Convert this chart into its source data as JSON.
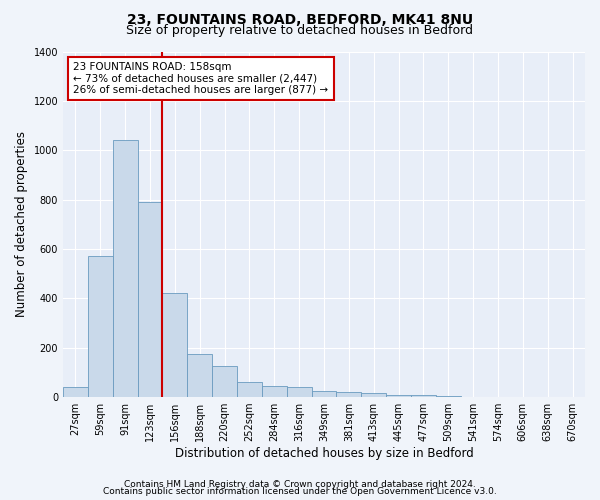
{
  "title": "23, FOUNTAINS ROAD, BEDFORD, MK41 8NU",
  "subtitle": "Size of property relative to detached houses in Bedford",
  "xlabel": "Distribution of detached houses by size in Bedford",
  "ylabel": "Number of detached properties",
  "categories": [
    "27sqm",
    "59sqm",
    "91sqm",
    "123sqm",
    "156sqm",
    "188sqm",
    "220sqm",
    "252sqm",
    "284sqm",
    "316sqm",
    "349sqm",
    "381sqm",
    "413sqm",
    "445sqm",
    "477sqm",
    "509sqm",
    "541sqm",
    "574sqm",
    "606sqm",
    "638sqm",
    "670sqm"
  ],
  "values": [
    40,
    570,
    1040,
    790,
    420,
    175,
    125,
    60,
    45,
    40,
    25,
    20,
    15,
    10,
    8,
    3,
    2,
    0,
    0,
    0,
    0
  ],
  "bar_color": "#c9d9ea",
  "bar_edge_color": "#6a9bbf",
  "vline_color": "#cc0000",
  "vline_index": 4,
  "annotation_text": "23 FOUNTAINS ROAD: 158sqm\n← 73% of detached houses are smaller (2,447)\n26% of semi-detached houses are larger (877) →",
  "annotation_box_facecolor": "#ffffff",
  "annotation_box_edgecolor": "#cc0000",
  "ylim": [
    0,
    1400
  ],
  "yticks": [
    0,
    200,
    400,
    600,
    800,
    1000,
    1200,
    1400
  ],
  "footer1": "Contains HM Land Registry data © Crown copyright and database right 2024.",
  "footer2": "Contains public sector information licensed under the Open Government Licence v3.0.",
  "fig_facecolor": "#f0f4fa",
  "axes_facecolor": "#e8eef8",
  "grid_color": "#ffffff",
  "title_fontsize": 10,
  "subtitle_fontsize": 9,
  "axis_label_fontsize": 8.5,
  "tick_fontsize": 7,
  "annotation_fontsize": 7.5,
  "footer_fontsize": 6.5
}
